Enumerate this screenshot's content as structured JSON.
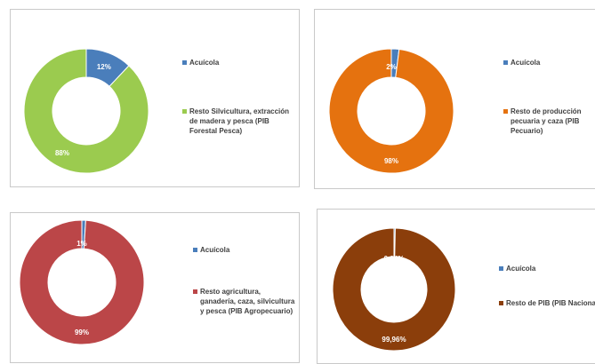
{
  "chart_data": [
    {
      "type": "pie",
      "donut": true,
      "title": "",
      "series": [
        {
          "name": "Acuícola",
          "value": 12,
          "label": "12%",
          "color": "#4a7ebb"
        },
        {
          "name": "Resto Silvicultura, extracción de madera y pesca (PIB Forestal Pesca)",
          "value": 88,
          "label": "88%",
          "color": "#9bcb4f"
        }
      ],
      "legend_position": "right"
    },
    {
      "type": "pie",
      "donut": true,
      "title": "",
      "series": [
        {
          "name": "Acuícola",
          "value": 2,
          "label": "2%",
          "color": "#4a7ebb"
        },
        {
          "name": "Resto de producción pecuaria y caza (PIB Pecuario)",
          "value": 98,
          "label": "98%",
          "color": "#e5720f"
        }
      ],
      "legend_position": "right"
    },
    {
      "type": "pie",
      "donut": true,
      "title": "",
      "series": [
        {
          "name": "Acuícola",
          "value": 1,
          "label": "1%",
          "color": "#4a7ebb"
        },
        {
          "name": "Resto agricultura, ganadería, caza, silvicultura y pesca (PIB Agropecuario)",
          "value": 99,
          "label": "99%",
          "color": "#bb4648"
        }
      ],
      "legend_position": "right"
    },
    {
      "type": "pie",
      "donut": true,
      "title": "",
      "series": [
        {
          "name": "Acuícola",
          "value": 0.04,
          "label": "0,04%",
          "color": "#4a7ebb"
        },
        {
          "name": "Resto de PIB (PIB Nacional)",
          "value": 99.96,
          "label": "99,96%",
          "color": "#8b3e0b"
        }
      ],
      "legend_position": "right"
    }
  ],
  "legends": [
    [
      {
        "text": "Acuícola",
        "color": "#4a7ebb"
      },
      {
        "text": "Resto Silvicultura, extracción de madera y pesca (PIB Forestal Pesca)",
        "color": "#9bcb4f"
      }
    ],
    [
      {
        "text": "Acuícola",
        "color": "#4a7ebb"
      },
      {
        "text": "Resto de producción pecuaria y caza (PIB Pecuario)",
        "color": "#e5720f"
      }
    ],
    [
      {
        "text": "Acuícola",
        "color": "#4a7ebb"
      },
      {
        "text": "Resto agricultura, ganadería, caza, silvicultura y pesca (PIB Agropecuario)",
        "color": "#bb4648"
      }
    ],
    [
      {
        "text": "Acuícola",
        "color": "#4a7ebb"
      },
      {
        "text": "Resto de PIB (PIB Nacional)",
        "color": "#8b3e0b"
      }
    ]
  ]
}
